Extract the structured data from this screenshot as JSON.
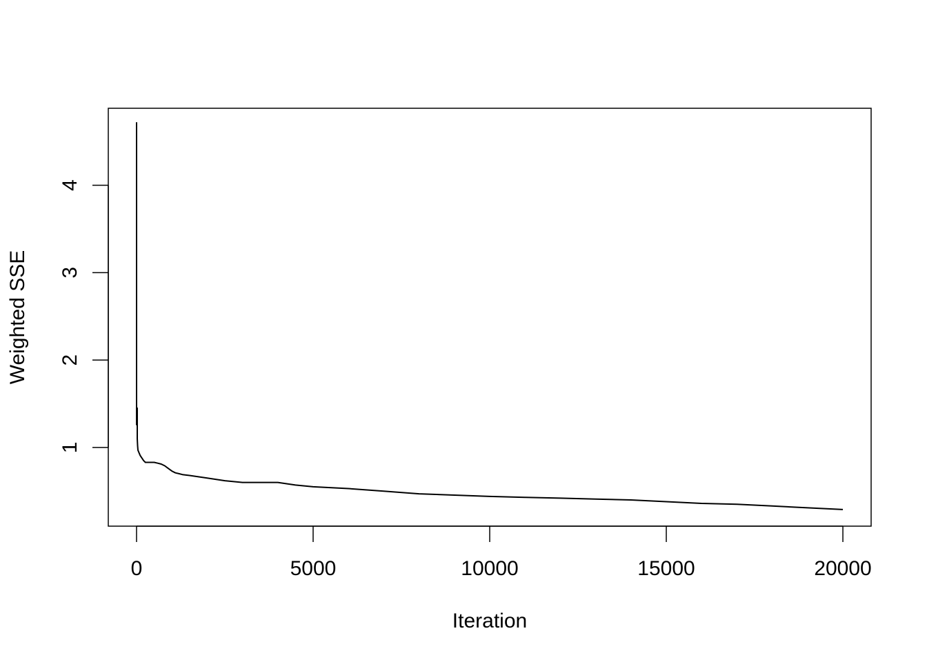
{
  "chart_data": {
    "type": "line",
    "title": "",
    "xlabel": "Iteration",
    "ylabel": "Weighted SSE",
    "xlim": [
      -800,
      20800
    ],
    "ylim": [
      0.1,
      4.88
    ],
    "x_ticks": [
      0,
      5000,
      10000,
      15000,
      20000
    ],
    "x_tick_labels": [
      "0",
      "5000",
      "10000",
      "15000",
      "20000"
    ],
    "y_ticks": [
      1,
      2,
      3,
      4
    ],
    "y_tick_labels": [
      "1",
      "2",
      "3",
      "4"
    ],
    "grid": false,
    "legend": "none",
    "line_color": "#000000",
    "series": [
      {
        "x": [
          0,
          0,
          0,
          10,
          20,
          20,
          20,
          30,
          40,
          60,
          80,
          100,
          150,
          200,
          250,
          300,
          400,
          500,
          600,
          700,
          800,
          900,
          1000,
          1100,
          1200,
          1300,
          1500,
          2000,
          2500,
          3000,
          3500,
          4000,
          4500,
          5000,
          6000,
          7000,
          8000,
          9000,
          10000,
          11000,
          12000,
          13000,
          14000,
          15000,
          16000,
          17000,
          18000,
          19000,
          20000
        ],
        "y": [
          4.72,
          2.5,
          1.26,
          1.45,
          1.26,
          1.45,
          1.1,
          1.02,
          0.97,
          0.95,
          0.93,
          0.91,
          0.88,
          0.85,
          0.83,
          0.83,
          0.83,
          0.83,
          0.82,
          0.81,
          0.79,
          0.76,
          0.73,
          0.71,
          0.7,
          0.69,
          0.68,
          0.65,
          0.62,
          0.6,
          0.6,
          0.6,
          0.57,
          0.55,
          0.53,
          0.5,
          0.47,
          0.455,
          0.44,
          0.43,
          0.42,
          0.41,
          0.4,
          0.38,
          0.36,
          0.35,
          0.33,
          0.31,
          0.29
        ]
      }
    ]
  }
}
